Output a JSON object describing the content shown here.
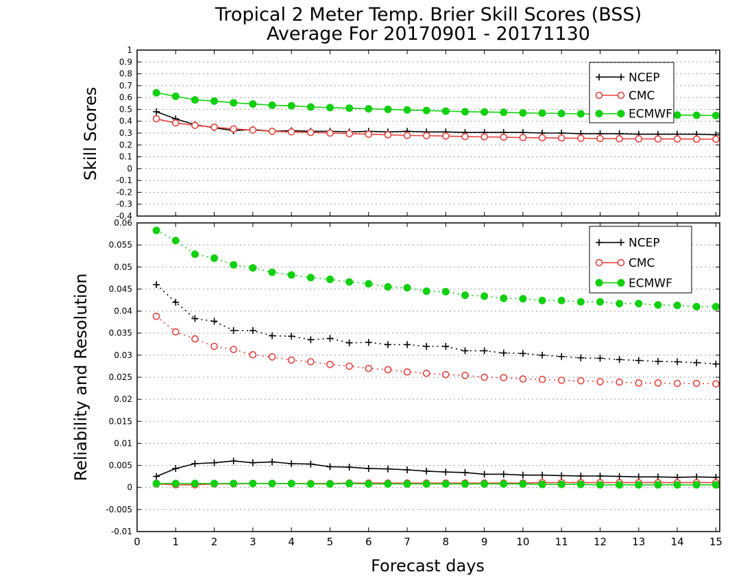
{
  "title": {
    "line1": "Tropical 2 Meter Temp. Brier Skill Scores (BSS)",
    "line2": "Average For 20170901 - 20171130"
  },
  "xlabel": "Forecast days",
  "colors": {
    "NCEP": "#000000",
    "CMC": "#e8413c",
    "ECMWF": "#10d010"
  },
  "chart_data": [
    {
      "type": "line",
      "ylabel": "Skill Scores",
      "xlim": [
        0,
        15.1
      ],
      "ylim": [
        -0.4,
        1
      ],
      "x_ticks": [
        0,
        1,
        2,
        3,
        4,
        5,
        6,
        7,
        8,
        9,
        10,
        11,
        12,
        13,
        14,
        15
      ],
      "x_tick_labels": [
        "0",
        "1",
        "2",
        "3",
        "4",
        "5",
        "6",
        "7",
        "8",
        "9",
        "10",
        "11",
        "12",
        "13",
        "14",
        "15"
      ],
      "y_ticks": [
        -0.4,
        -0.3,
        -0.2,
        -0.1,
        0,
        0.1,
        0.2,
        0.3,
        0.4,
        0.5,
        0.6,
        0.7,
        0.8,
        0.9,
        1
      ],
      "y_tick_labels": [
        "-0.4",
        "-0.3",
        "-0.2",
        "-0.1",
        "0",
        "0.1",
        "0.2",
        "0.3",
        "0.4",
        "0.5",
        "0.6",
        "0.7",
        "0.8",
        "0.9",
        "1"
      ],
      "grid": true,
      "legend": {
        "position": "top-right",
        "entries": [
          "NCEP",
          "CMC",
          "ECMWF"
        ]
      },
      "x": [
        0.5,
        1,
        1.5,
        2,
        2.5,
        3,
        3.5,
        4,
        4.5,
        5,
        5.5,
        6,
        6.5,
        7,
        7.5,
        8,
        8.5,
        9,
        9.5,
        10,
        10.5,
        11,
        11.5,
        12,
        12.5,
        13,
        13.5,
        14,
        14.5,
        15
      ],
      "series": [
        {
          "name": "ECMWF",
          "line": "solid",
          "marker": "dot",
          "values": [
            0.64,
            0.61,
            0.58,
            0.57,
            0.555,
            0.545,
            0.535,
            0.53,
            0.52,
            0.515,
            0.51,
            0.505,
            0.5,
            0.495,
            0.49,
            0.485,
            0.48,
            0.478,
            0.475,
            0.47,
            0.468,
            0.465,
            0.462,
            0.46,
            0.458,
            0.456,
            0.455,
            0.452,
            0.45,
            0.448
          ]
        },
        {
          "name": "NCEP",
          "line": "solid",
          "marker": "plus",
          "values": [
            0.48,
            0.42,
            0.37,
            0.345,
            0.32,
            0.33,
            0.315,
            0.32,
            0.315,
            0.315,
            0.31,
            0.315,
            0.31,
            0.315,
            0.31,
            0.31,
            0.305,
            0.305,
            0.305,
            0.305,
            0.3,
            0.3,
            0.295,
            0.295,
            0.295,
            0.29,
            0.29,
            0.29,
            0.29,
            0.285
          ]
        },
        {
          "name": "CMC",
          "line": "solid",
          "marker": "circle",
          "values": [
            0.42,
            0.385,
            0.365,
            0.35,
            0.335,
            0.325,
            0.315,
            0.31,
            0.305,
            0.3,
            0.295,
            0.29,
            0.285,
            0.28,
            0.278,
            0.275,
            0.27,
            0.268,
            0.265,
            0.262,
            0.26,
            0.258,
            0.256,
            0.254,
            0.252,
            0.251,
            0.25,
            0.25,
            0.249,
            0.248
          ]
        }
      ]
    },
    {
      "type": "line",
      "ylabel": "Reliability and Resolution",
      "xlim": [
        0,
        15.1
      ],
      "ylim": [
        -0.01,
        0.06
      ],
      "x_ticks": [
        0,
        1,
        2,
        3,
        4,
        5,
        6,
        7,
        8,
        9,
        10,
        11,
        12,
        13,
        14,
        15
      ],
      "x_tick_labels": [
        "0",
        "1",
        "2",
        "3",
        "4",
        "5",
        "6",
        "7",
        "8",
        "9",
        "10",
        "11",
        "12",
        "13",
        "14",
        "15"
      ],
      "y_ticks": [
        -0.01,
        -0.005,
        0,
        0.005,
        0.01,
        0.015,
        0.02,
        0.025,
        0.03,
        0.035,
        0.04,
        0.045,
        0.05,
        0.055,
        0.06
      ],
      "y_tick_labels": [
        "-0.01",
        "-0.005",
        "0",
        "0.005",
        "0.01",
        "0.015",
        "0.02",
        "0.025",
        "0.03",
        "0.035",
        "0.04",
        "0.045",
        "0.05",
        "0.055",
        "0.06"
      ],
      "grid": true,
      "legend": {
        "position": "top-right",
        "entries": [
          "NCEP",
          "CMC",
          "ECMWF"
        ]
      },
      "x": [
        0.5,
        1,
        1.5,
        2,
        2.5,
        3,
        3.5,
        4,
        4.5,
        5,
        5.5,
        6,
        6.5,
        7,
        7.5,
        8,
        8.5,
        9,
        9.5,
        10,
        10.5,
        11,
        11.5,
        12,
        12.5,
        13,
        13.5,
        14,
        14.5,
        15
      ],
      "series": [
        {
          "name": "ECMWF",
          "line": "dotted",
          "marker": "dot",
          "values": [
            0.0583,
            0.056,
            0.0529,
            0.052,
            0.0505,
            0.0498,
            0.0488,
            0.0482,
            0.0476,
            0.0472,
            0.0466,
            0.0462,
            0.0455,
            0.0453,
            0.0445,
            0.0444,
            0.0436,
            0.0434,
            0.0429,
            0.0428,
            0.0424,
            0.0424,
            0.0421,
            0.0421,
            0.0417,
            0.0417,
            0.0414,
            0.0413,
            0.041,
            0.041
          ]
        },
        {
          "name": "NCEP",
          "line": "dotted",
          "marker": "plus",
          "values": [
            0.046,
            0.042,
            0.0383,
            0.0377,
            0.0356,
            0.0356,
            0.0344,
            0.0343,
            0.0335,
            0.0338,
            0.0328,
            0.0329,
            0.0324,
            0.0324,
            0.032,
            0.032,
            0.031,
            0.031,
            0.0305,
            0.0304,
            0.03,
            0.0297,
            0.0294,
            0.0293,
            0.029,
            0.0288,
            0.0286,
            0.0285,
            0.0283,
            0.028
          ]
        },
        {
          "name": "CMC",
          "line": "dotted",
          "marker": "circle",
          "values": [
            0.0388,
            0.0353,
            0.0337,
            0.032,
            0.0313,
            0.0301,
            0.0296,
            0.0289,
            0.0285,
            0.0279,
            0.0275,
            0.027,
            0.0267,
            0.0262,
            0.0259,
            0.0256,
            0.0254,
            0.025,
            0.0249,
            0.0246,
            0.0245,
            0.0243,
            0.0242,
            0.024,
            0.0239,
            0.0237,
            0.0237,
            0.0236,
            0.0236,
            0.0235
          ]
        },
        {
          "name": "NCEP",
          "line": "solid",
          "marker": "plus",
          "values": [
            0.0025,
            0.0043,
            0.0054,
            0.0056,
            0.006,
            0.0056,
            0.0058,
            0.0054,
            0.0053,
            0.0047,
            0.0046,
            0.0043,
            0.0042,
            0.004,
            0.0037,
            0.0035,
            0.0034,
            0.003,
            0.003,
            0.0028,
            0.0028,
            0.0027,
            0.0026,
            0.0026,
            0.0025,
            0.0024,
            0.0024,
            0.0023,
            0.0024,
            0.0023
          ]
        },
        {
          "name": "CMC",
          "line": "solid",
          "marker": "circle",
          "values": [
            0.0008,
            0.0006,
            0.0006,
            0.0008,
            0.0008,
            0.0009,
            0.0009,
            0.0009,
            0.0009,
            0.0009,
            0.001,
            0.001,
            0.001,
            0.001,
            0.001,
            0.001,
            0.001,
            0.001,
            0.001,
            0.001,
            0.0011,
            0.0011,
            0.0011,
            0.0011,
            0.0011,
            0.0011,
            0.0011,
            0.0011,
            0.0011,
            0.0011
          ]
        },
        {
          "name": "ECMWF",
          "line": "solid",
          "marker": "dot",
          "values": [
            0.0009,
            0.0009,
            0.0009,
            0.0009,
            0.0009,
            0.0009,
            0.0009,
            0.0009,
            0.0008,
            0.0008,
            0.0009,
            0.0008,
            0.0008,
            0.0008,
            0.0008,
            0.0008,
            0.0008,
            0.0008,
            0.0008,
            0.0008,
            0.0007,
            0.0007,
            0.0007,
            0.0006,
            0.0006,
            0.0006,
            0.0006,
            0.0006,
            0.0006,
            0.0006
          ]
        }
      ]
    }
  ]
}
